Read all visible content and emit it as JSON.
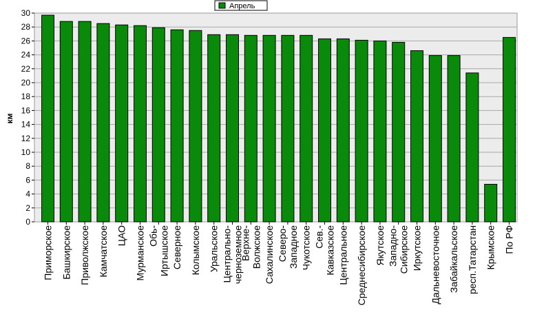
{
  "chart_data": {
    "type": "bar",
    "title": "",
    "xlabel": "",
    "ylabel": "км",
    "ylim": [
      0,
      30
    ],
    "ytick_step": 2,
    "grid": true,
    "legend_position": "top-center",
    "bar_color": "#0a8a0a",
    "series": [
      {
        "name": "Апрель",
        "values": [
          29.7,
          28.8,
          28.8,
          28.5,
          28.3,
          28.2,
          27.9,
          27.6,
          27.5,
          26.9,
          26.9,
          26.8,
          26.8,
          26.8,
          26.8,
          26.3,
          26.3,
          26.1,
          26.0,
          25.8,
          24.6,
          23.9,
          23.9,
          21.4,
          5.4,
          26.5
        ]
      }
    ],
    "categories": [
      "Приморское",
      "Башкирское",
      "Приволжское",
      "Камчатское",
      "ЦАО",
      "Мурманское",
      "Обь-\nИртышское",
      "Северное",
      "Колымское",
      "Уральское",
      "Центрально-\nчерноземное",
      "Верхне-\nВолжское",
      "Сахалинское",
      "Северо-\nЗападное",
      "Чукотское",
      "Сев.-\nКавказское",
      "Центральное",
      "Среднесибирское",
      "Якутское",
      "Западно-\nСибирское",
      "Иркутское",
      "Дальневосточное",
      "Забайкальское",
      "респ.Татарстан",
      "Крымское",
      "По РФ"
    ]
  }
}
